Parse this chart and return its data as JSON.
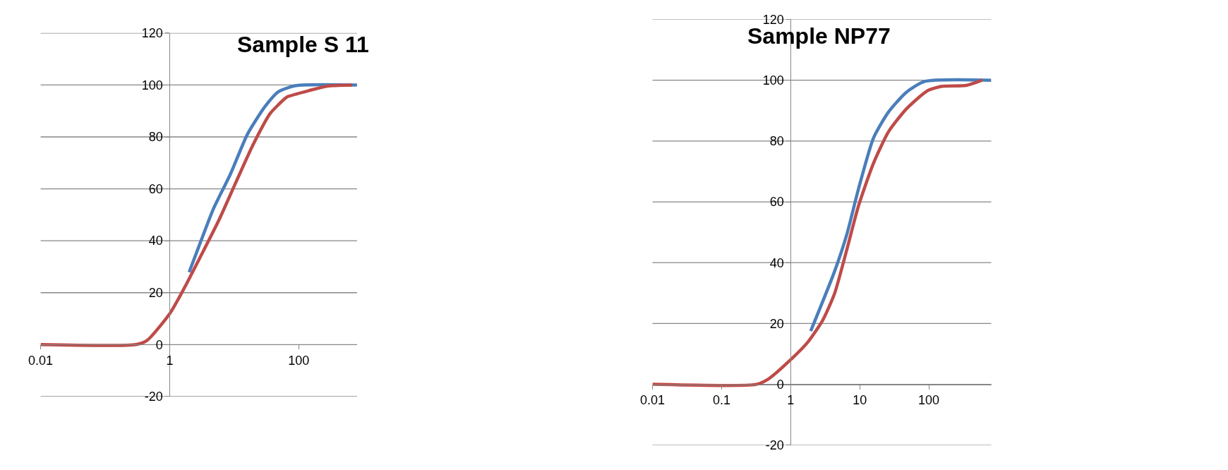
{
  "chart_data": [
    {
      "type": "line",
      "title": "Sample S 11",
      "log": "x",
      "grid": "y",
      "xlim": [
        0.01,
        800
      ],
      "ylim": [
        -20,
        120
      ],
      "xticks": [
        0.01,
        1,
        100
      ],
      "yticks": [
        -20,
        0,
        20,
        40,
        60,
        80,
        100,
        120
      ],
      "series": [
        {
          "color": "#4a7ebb",
          "x": [
            2.0,
            2.8,
            4.7,
            8.7,
            16,
            30,
            49,
            91,
            800
          ],
          "values": [
            27.9,
            37.5,
            52,
            65.6,
            81,
            91.7,
            97.5,
            99.8,
            100
          ]
        },
        {
          "color": "#be4b48",
          "x": [
            0.01,
            0.3,
            0.45,
            1,
            1.7,
            3.1,
            5.8,
            10.7,
            19.6,
            36,
            60,
            67,
            152,
            280,
            670
          ],
          "values": [
            0,
            0,
            1.7,
            11.9,
            22,
            34.6,
            48,
            62.7,
            77,
            89,
            94.6,
            95.5,
            98,
            99.6,
            100
          ]
        }
      ]
    },
    {
      "type": "line",
      "title": "Sample NP77",
      "log": "x",
      "grid": "y",
      "xlim": [
        0.01,
        800
      ],
      "ylim": [
        -20,
        120
      ],
      "xticks": [
        0.01,
        0.1,
        1,
        10,
        100
      ],
      "yticks": [
        -20,
        0,
        20,
        40,
        60,
        80,
        100,
        120
      ],
      "series": [
        {
          "color": "#4a7ebb",
          "x": [
            1.95,
            4.3,
            6.5,
            9.6,
            15.8,
            26,
            47,
            87,
            800
          ],
          "values": [
            17.5,
            37,
            49.3,
            64.3,
            81,
            89.5,
            96,
            99.6,
            100
          ]
        },
        {
          "color": "#be4b48",
          "x": [
            0.01,
            0.32,
            0.48,
            1,
            1.76,
            2.9,
            4.3,
            6.4,
            9.6,
            15.8,
            26,
            47,
            95,
            155,
            350,
            590
          ],
          "values": [
            0,
            0,
            1.8,
            8.1,
            13.8,
            21,
            29.7,
            43.7,
            58.7,
            72.7,
            83,
            90.5,
            96.5,
            98,
            98.3,
            100
          ]
        }
      ]
    }
  ]
}
